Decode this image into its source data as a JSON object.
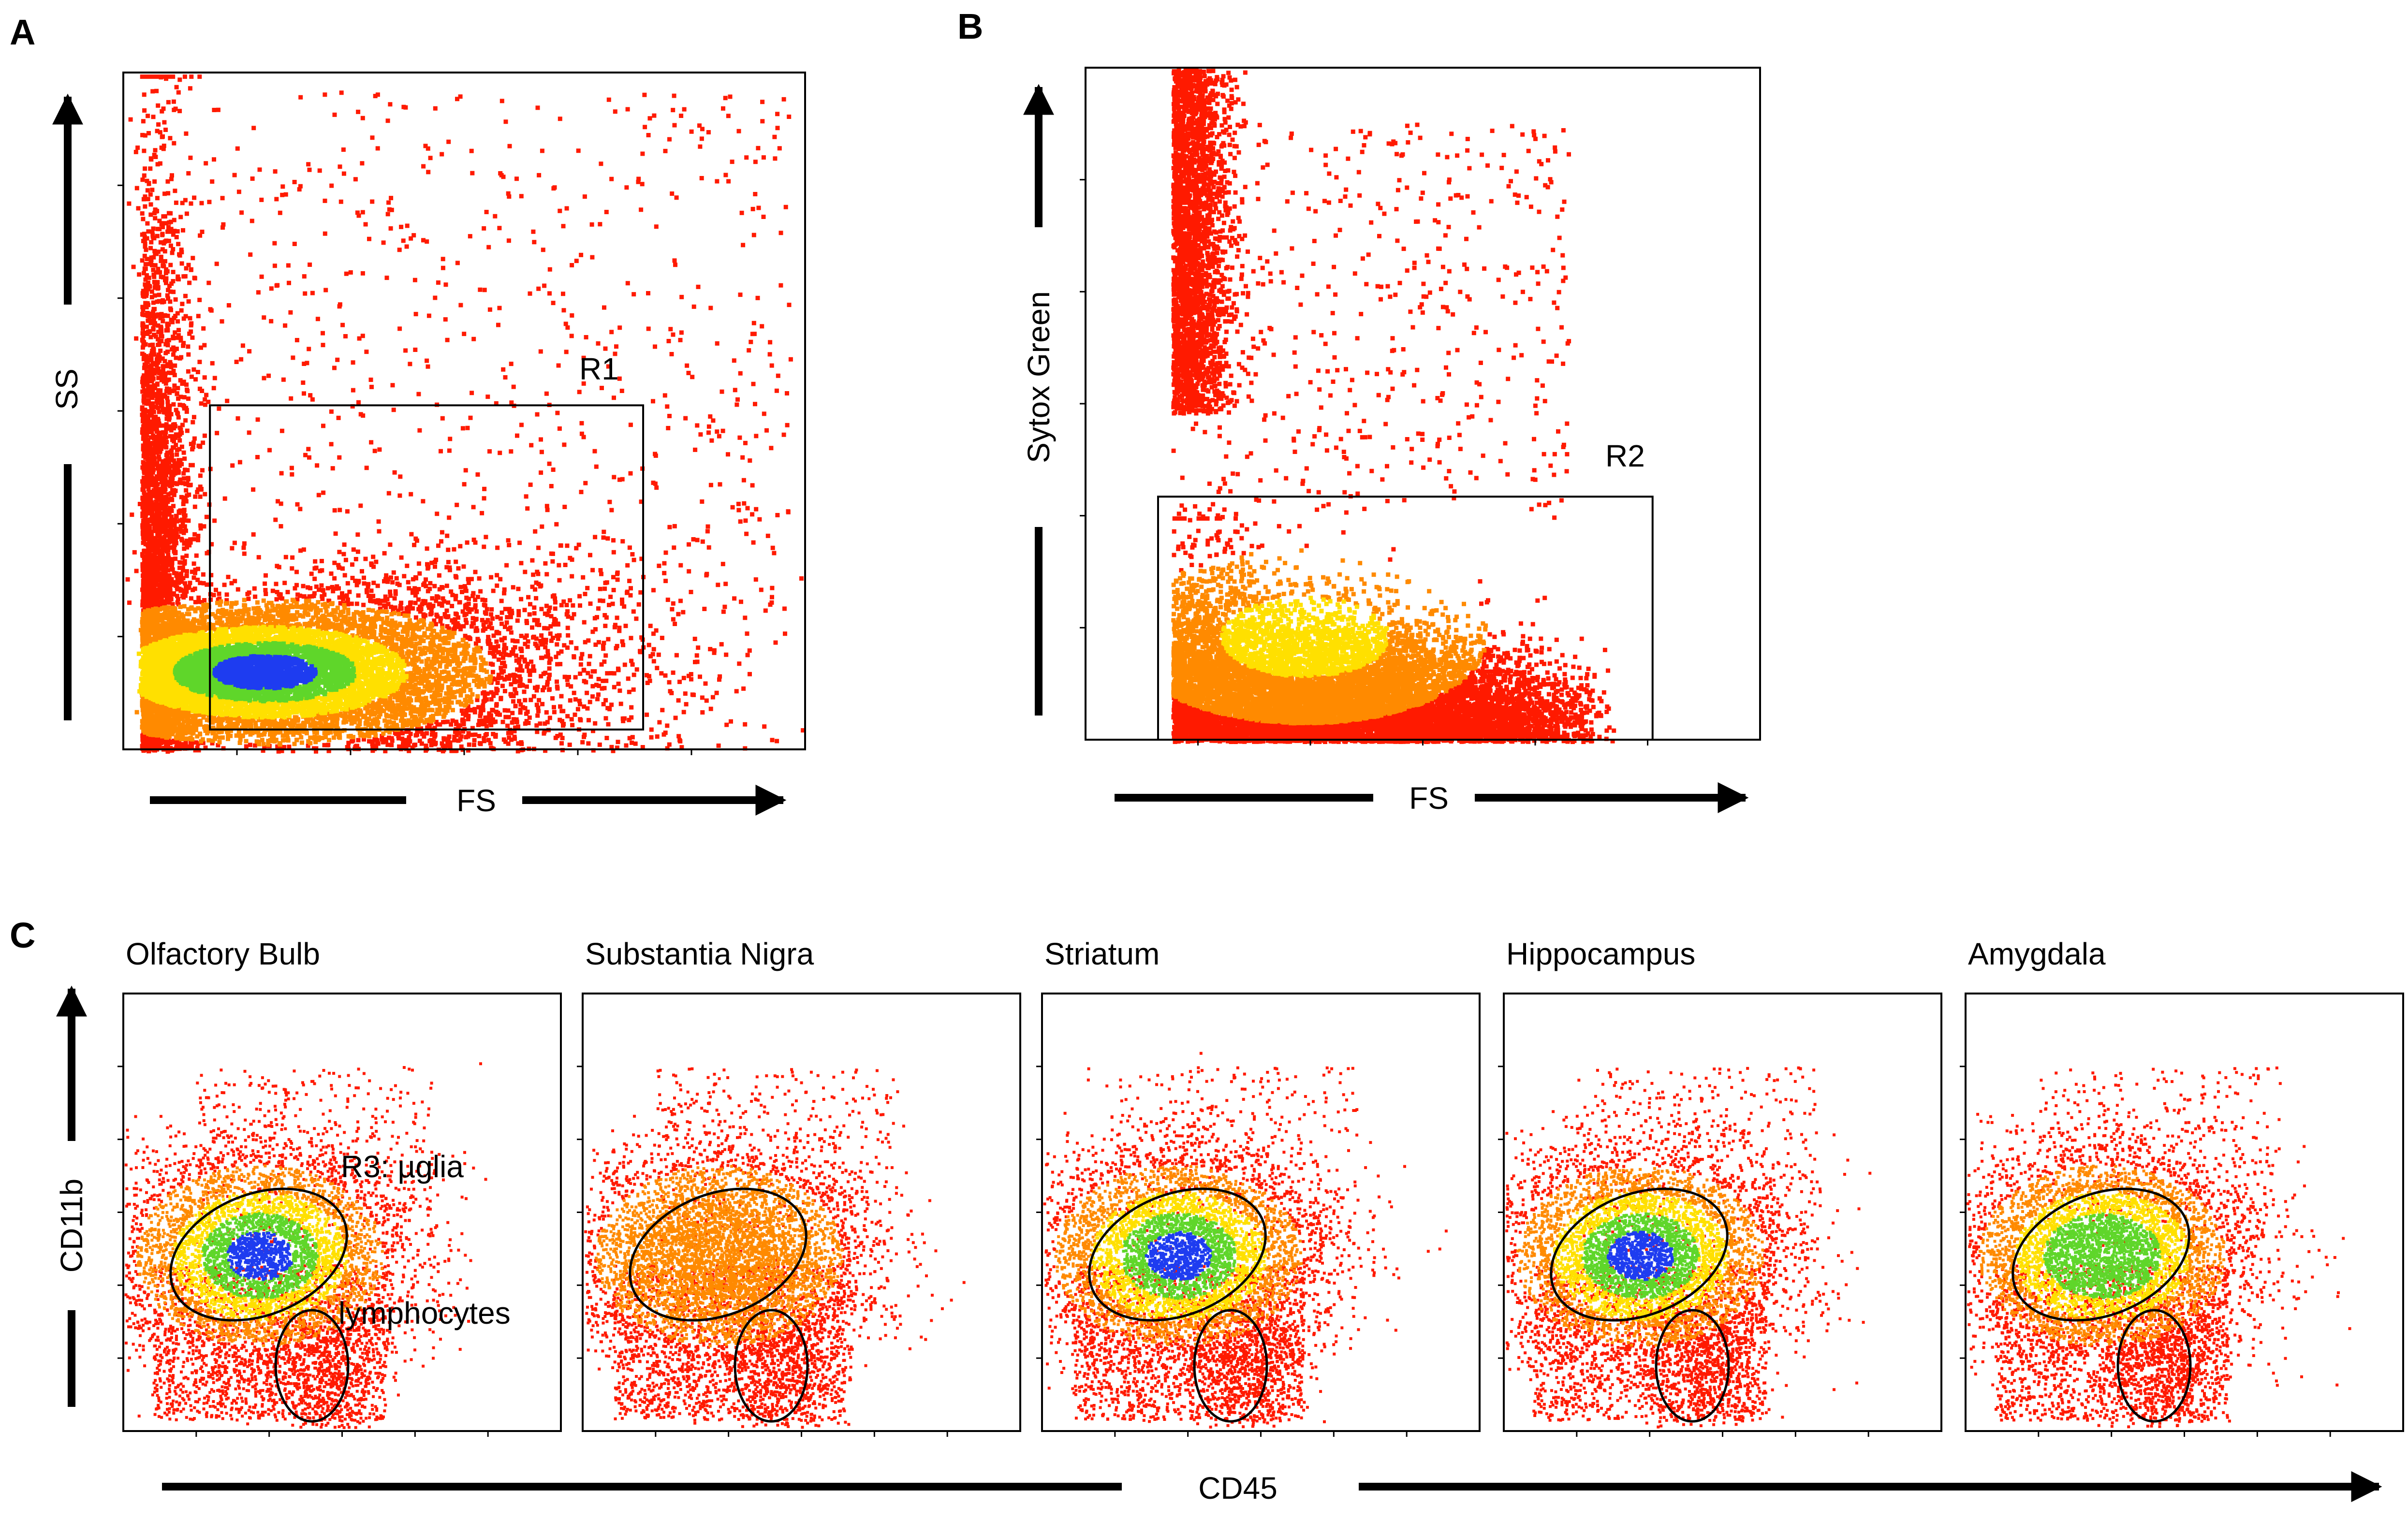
{
  "figure": {
    "colors": {
      "low": "#ff1a00",
      "mid1": "#ff8a00",
      "mid2": "#ffe000",
      "mid3": "#5fd62a",
      "high": "#1e3cf0",
      "frame": "#000000",
      "gate": "#000000"
    }
  },
  "chart_data": [
    {
      "panel": "A",
      "type": "scatter",
      "density_colormap": [
        "red",
        "orange",
        "yellow",
        "green",
        "blue"
      ],
      "xlabel": "FS",
      "ylabel": "SS",
      "xlim": [
        0,
        1023
      ],
      "ylim": [
        0,
        1023
      ],
      "gates": [
        {
          "name": "R1",
          "shape": "rectangle",
          "x": [
            130,
            780
          ],
          "y": [
            30,
            520
          ]
        }
      ],
      "densest_population": {
        "x": 210,
        "y": 120
      }
    },
    {
      "panel": "B",
      "type": "scatter",
      "density_colormap": [
        "red",
        "orange",
        "yellow",
        "green",
        "blue"
      ],
      "xlabel": "FS",
      "ylabel": "Sytox Green",
      "xlim": [
        0,
        1023
      ],
      "ylim": [
        0,
        1023
      ],
      "gates": [
        {
          "name": "R2",
          "shape": "rectangle",
          "x": [
            110,
            860
          ],
          "y": [
            0,
            370
          ]
        }
      ],
      "populations": [
        {
          "description": "live",
          "x_range": [
            130,
            800
          ],
          "y_range": [
            0,
            340
          ]
        },
        {
          "description": "dead",
          "x_range": [
            130,
            260
          ],
          "y_range": [
            500,
            1023
          ]
        }
      ]
    },
    {
      "panel": "C",
      "type": "scatter",
      "xlabel": "CD45",
      "ylabel": "CD11b",
      "xlim": [
        0,
        1023
      ],
      "ylim": [
        0,
        1023
      ],
      "gate_labels": [
        "R3: µglia",
        "lymphocytes"
      ],
      "subplots": [
        {
          "title": "Olfactory Bulb",
          "peak_density": "high"
        },
        {
          "title": "Substantia Nigra",
          "peak_density": "low"
        },
        {
          "title": "Striatum",
          "peak_density": "high"
        },
        {
          "title": "Hippocampus",
          "peak_density": "high"
        },
        {
          "title": "Amygdala",
          "peak_density": "medium"
        }
      ]
    }
  ],
  "labels": {
    "panel_a": "A",
    "panel_b": "B",
    "panel_c": "C"
  }
}
